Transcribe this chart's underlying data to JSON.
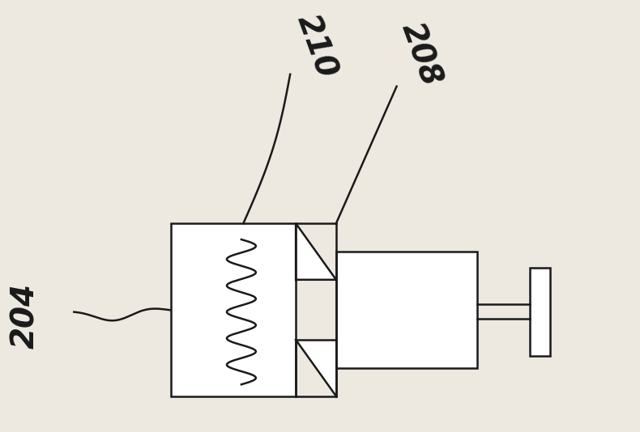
{
  "bg_color": "#ede8e0",
  "line_color": "#1a1a1a",
  "label_210": "210",
  "label_208": "208",
  "label_204": "204",
  "label_fontsize": 28,
  "figw": 7.9,
  "figh": 5.34,
  "dpi": 100
}
